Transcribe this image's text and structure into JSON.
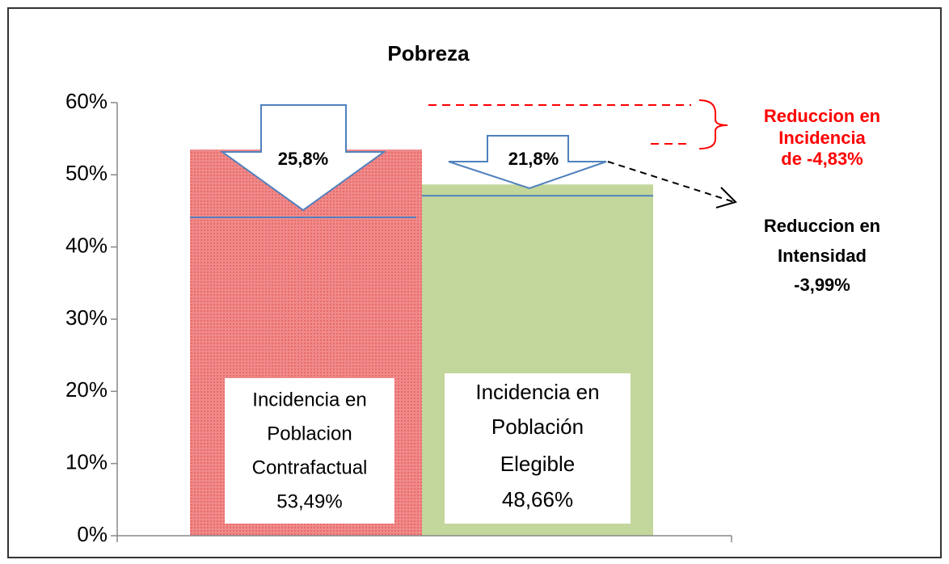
{
  "chart_data": {
    "type": "bar",
    "title": "Pobreza",
    "categories": [
      [
        "Incidencia en",
        "Poblacion",
        "Contrafactual"
      ],
      [
        "Incidencia en",
        "Población",
        "Elegible"
      ]
    ],
    "values": [
      53.49,
      48.66
    ],
    "value_labels": [
      "53,49%",
      "48,66%"
    ],
    "colors": [
      "#f08a8a",
      "#c3d69b"
    ],
    "inner_lines": [
      44.1,
      47.1
    ],
    "inner_line_color": "#4f81bd",
    "arrow_labels": [
      "25,8%",
      "21,8%"
    ],
    "annotations": [
      {
        "lines": [
          "Reduccion en",
          "Incidencia",
          "de -4,83%"
        ],
        "color": "#ff0000"
      },
      {
        "lines": [
          "Reduccion en",
          "Intensidad",
          "-3,99%"
        ],
        "color": "#000000"
      }
    ],
    "ylim": [
      0,
      60
    ],
    "yticks": [
      {
        "value": 0,
        "label": "0%"
      },
      {
        "value": 10,
        "label": "10%"
      },
      {
        "value": 20,
        "label": "20%"
      },
      {
        "value": 30,
        "label": "30%"
      },
      {
        "value": 40,
        "label": "40%"
      },
      {
        "value": 50,
        "label": "50%"
      },
      {
        "value": 60,
        "label": "60%"
      }
    ]
  }
}
